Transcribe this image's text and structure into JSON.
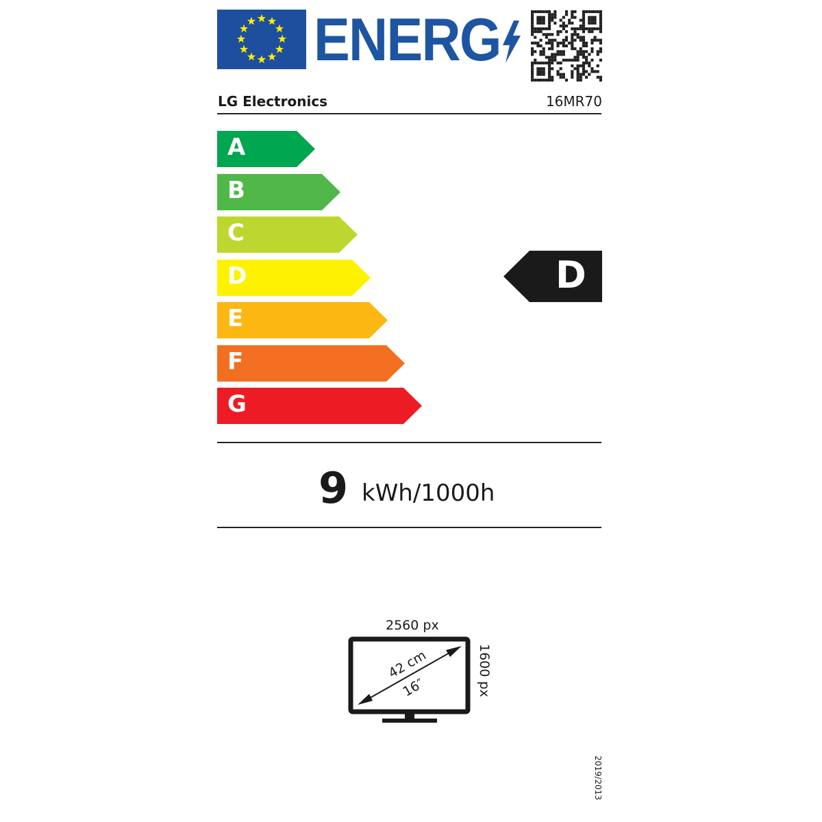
{
  "header": {
    "logo_text": "ENERG",
    "flag_color": "#1e4f9f",
    "brand_color": "#1e55a3"
  },
  "supplier": "LG Electronics",
  "model": "16MR70",
  "scale": [
    {
      "letter": "A",
      "color": "#00a650"
    },
    {
      "letter": "B",
      "color": "#50b848"
    },
    {
      "letter": "C",
      "color": "#bed630"
    },
    {
      "letter": "D",
      "color": "#fff200"
    },
    {
      "letter": "E",
      "color": "#fdb713"
    },
    {
      "letter": "F",
      "color": "#f26f21"
    },
    {
      "letter": "G",
      "color": "#ed1c24"
    }
  ],
  "rating": "D",
  "consumption": {
    "value": "9",
    "unit": "kWh/1000h"
  },
  "screen": {
    "width_px": "2560 px",
    "height_px": "1600 px",
    "diagonal_cm": "42 cm",
    "diagonal_in": "16″"
  },
  "regulation": "2019/2013"
}
